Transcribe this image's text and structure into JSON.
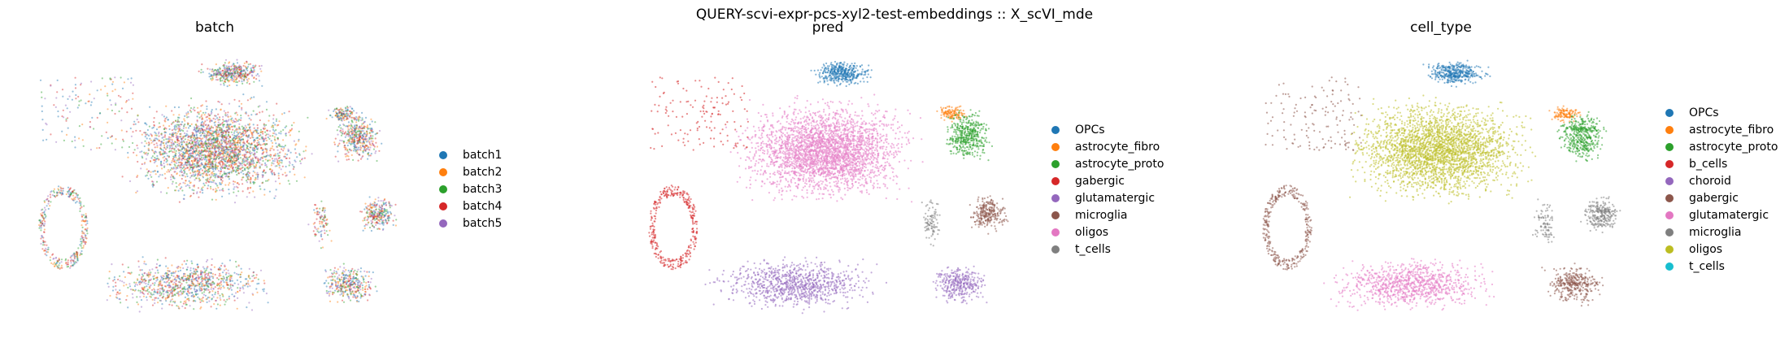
{
  "suptitle": "QUERY-scvi-expr-pcs-xyl2-test-embeddings :: X_scVI_mde",
  "chart_data": [
    {
      "type": "scatter",
      "title": "batch",
      "legend_position": "right",
      "grid": false,
      "axes_visible": false,
      "legend": [
        {
          "label": "batch1",
          "color": "#1f77b4"
        },
        {
          "label": "batch2",
          "color": "#ff7f0e"
        },
        {
          "label": "batch3",
          "color": "#2ca02c"
        },
        {
          "label": "batch4",
          "color": "#d62728"
        },
        {
          "label": "batch5",
          "color": "#9467bd"
        }
      ],
      "colouring": "mixed"
    },
    {
      "type": "scatter",
      "title": "pred",
      "legend_position": "right",
      "grid": false,
      "axes_visible": false,
      "legend": [
        {
          "label": "OPCs",
          "color": "#1f77b4"
        },
        {
          "label": "astrocyte_fibro",
          "color": "#ff7f0e"
        },
        {
          "label": "astrocyte_proto",
          "color": "#2ca02c"
        },
        {
          "label": "gabergic",
          "color": "#d62728"
        },
        {
          "label": "glutamatergic",
          "color": "#9467bd"
        },
        {
          "label": "microglia",
          "color": "#8c564b"
        },
        {
          "label": "oligos",
          "color": "#e377c2"
        },
        {
          "label": "t_cells",
          "color": "#7f7f7f"
        }
      ],
      "colouring": {
        "main": "oligos",
        "top": "OPCs",
        "right_upper": "astrocyte_proto",
        "right_upper_cap": "astrocyte_fibro",
        "right_mid": "microglia",
        "right_low": "glutamatergic",
        "left_ring": "gabergic",
        "bottom": "glutamatergic",
        "left_bits": "gabergic",
        "right_bits": "t_cells"
      }
    },
    {
      "type": "scatter",
      "title": "cell_type",
      "legend_position": "right",
      "grid": false,
      "axes_visible": false,
      "legend": [
        {
          "label": "OPCs",
          "color": "#1f77b4"
        },
        {
          "label": "astrocyte_fibro",
          "color": "#ff7f0e"
        },
        {
          "label": "astrocyte_proto",
          "color": "#2ca02c"
        },
        {
          "label": "b_cells",
          "color": "#d62728"
        },
        {
          "label": "choroid",
          "color": "#9467bd"
        },
        {
          "label": "gabergic",
          "color": "#8c564b"
        },
        {
          "label": "glutamatergic",
          "color": "#e377c2"
        },
        {
          "label": "microglia",
          "color": "#7f7f7f"
        },
        {
          "label": "oligos",
          "color": "#bcbd22"
        },
        {
          "label": "t_cells",
          "color": "#17becf"
        }
      ],
      "colouring": {
        "main": "oligos",
        "top": "OPCs",
        "right_upper": "astrocyte_proto",
        "right_upper_cap": "astrocyte_fibro",
        "right_mid": "microglia",
        "right_low": "gabergic",
        "left_ring": "gabergic",
        "bottom": "glutamatergic",
        "left_bits": "gabergic",
        "right_bits": "microglia"
      }
    }
  ]
}
